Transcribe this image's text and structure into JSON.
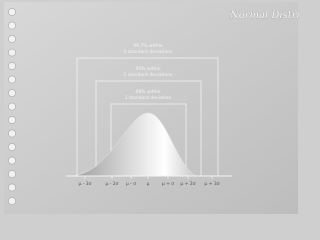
{
  "header": {
    "title": "Normal Distribution"
  },
  "brackets": [
    {
      "line1": "99.7% within",
      "line2": "3 standard deviations"
    },
    {
      "line1": "95% within",
      "line2": "2 standard deviations"
    },
    {
      "line1": "68% within",
      "line2": "1 standard deviation"
    }
  ],
  "axis_labels": [
    "μ - 3σ",
    "μ - 2σ",
    "μ - σ",
    "μ",
    "μ + σ",
    "μ + 2σ",
    "μ + 3σ"
  ]
}
